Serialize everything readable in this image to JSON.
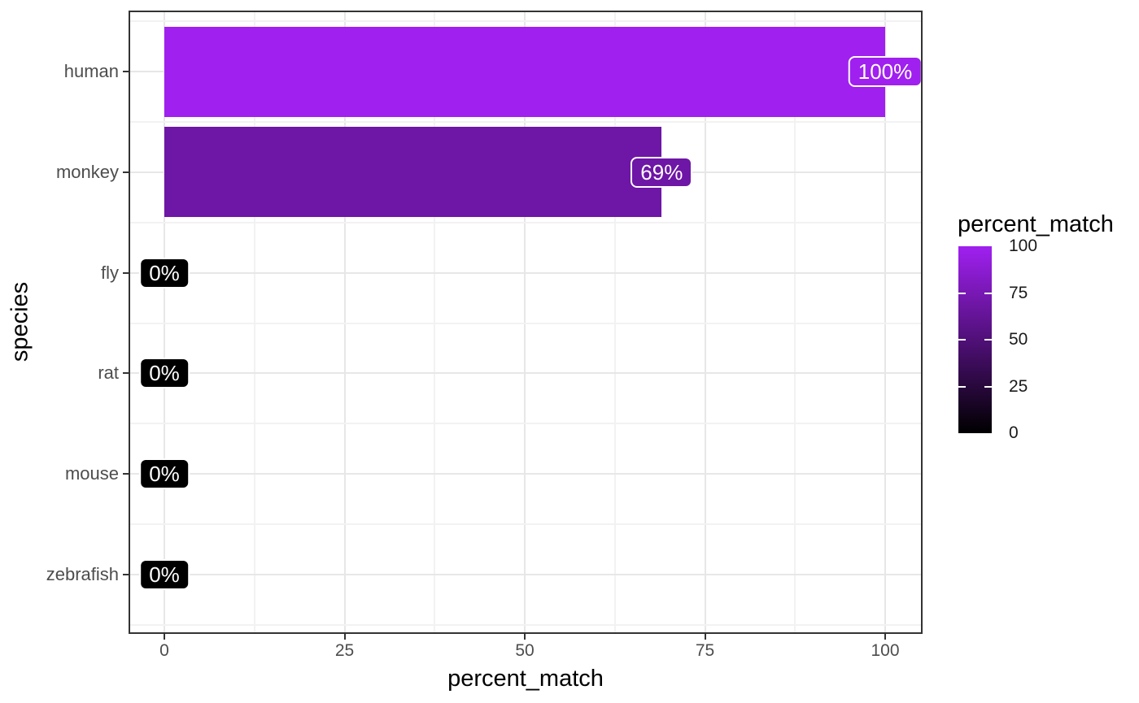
{
  "chart_data": {
    "type": "bar",
    "orientation": "horizontal",
    "title": "",
    "xlabel": "percent_match",
    "ylabel": "species",
    "categories": [
      "human",
      "monkey",
      "fly",
      "rat",
      "mouse",
      "zebrafish"
    ],
    "values": [
      100,
      69,
      0,
      0,
      0,
      0
    ],
    "bar_labels": [
      "100%",
      "69%",
      "0%",
      "0%",
      "0%",
      "0%"
    ],
    "xlim": [
      0,
      100
    ],
    "x_ticks": [
      0,
      25,
      50,
      75,
      100
    ],
    "x_tick_labels": [
      "0",
      "25",
      "50",
      "75",
      "100"
    ],
    "x_minor_ticks": [
      12.5,
      37.5,
      62.5,
      87.5
    ],
    "grid": true,
    "colors": {
      "gradient_low": "#000000",
      "gradient_high": "#A020F0",
      "label_text": "#FFFFFF",
      "axis_text": "#4D4D4D",
      "title_text": "#000000"
    },
    "legend": {
      "title": "percent_match",
      "position": "right",
      "type": "colorbar",
      "ticks": [
        100,
        75,
        50,
        25,
        0
      ],
      "tick_labels": [
        "100",
        "75",
        "50",
        "25",
        "0"
      ],
      "gradient_high": "#A020F0",
      "gradient_low": "#000000"
    }
  }
}
